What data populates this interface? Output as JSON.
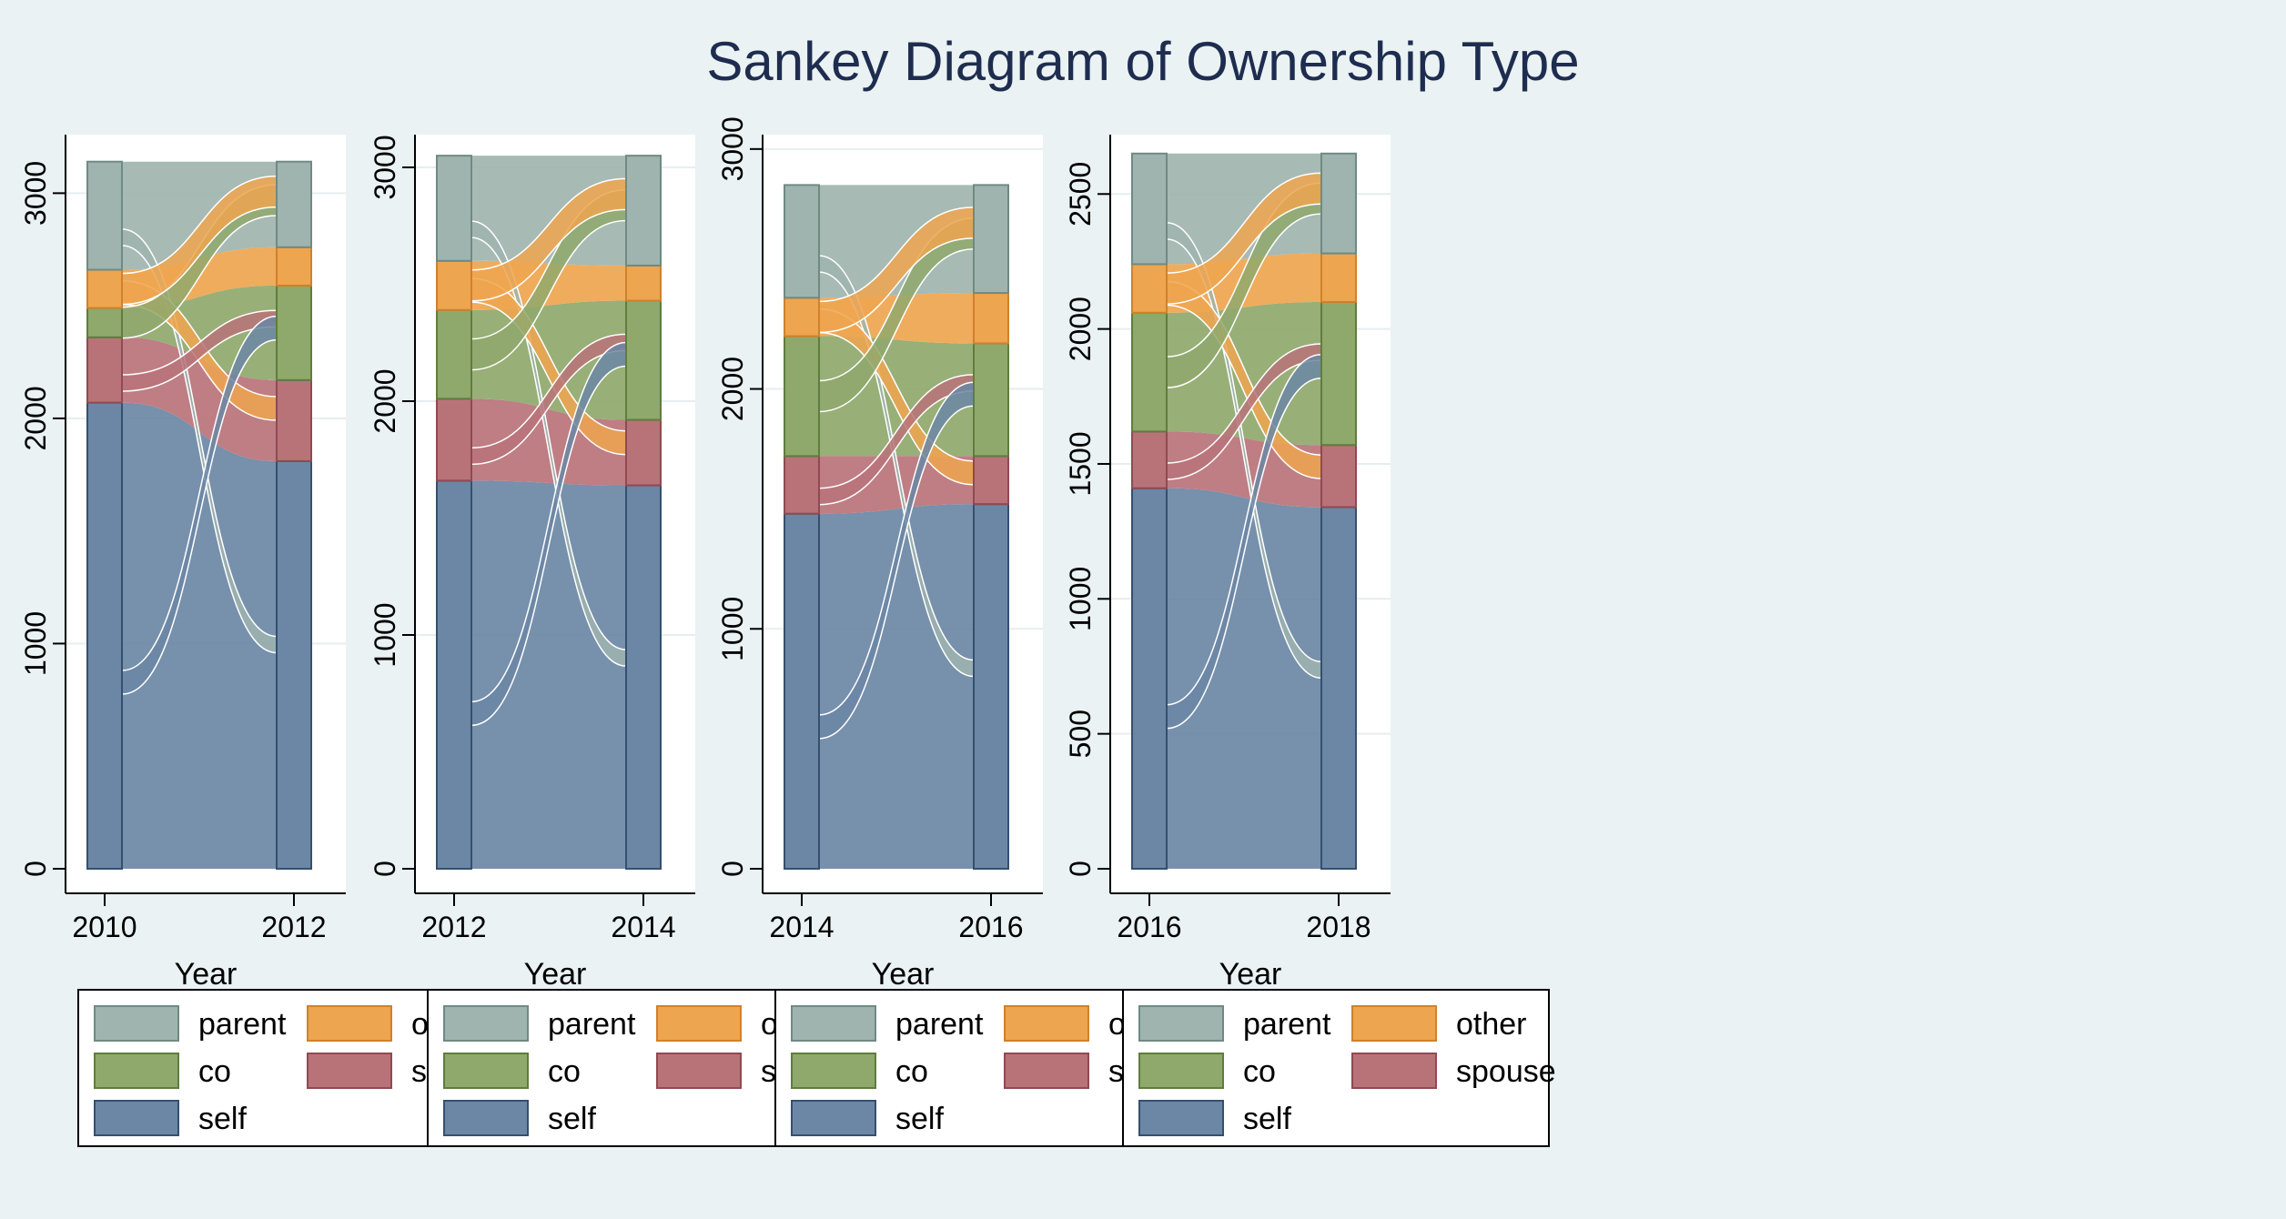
{
  "title": "Sankey Diagram of Ownership Type",
  "colors": {
    "parent": "#9fb4ae",
    "other": "#eea54f",
    "co": "#8fa86c",
    "spouse": "#b87379",
    "self": "#6b87a5"
  },
  "chart_data": [
    {
      "type": "sankey",
      "xlabel": "Year",
      "x_ticks": [
        "2010",
        "2012"
      ],
      "y_ticks": [
        0,
        1000,
        2000,
        3000
      ],
      "ylim": [
        0,
        3260
      ],
      "grid": true,
      "legend_placement": "bottom",
      "legend": [
        "parent",
        "other",
        "co",
        "spouse",
        "self"
      ],
      "left_stack": [
        {
          "category": "self",
          "value": 2070
        },
        {
          "category": "spouse",
          "value": 290
        },
        {
          "category": "co",
          "value": 130
        },
        {
          "category": "other",
          "value": 170
        },
        {
          "category": "parent",
          "value": 480
        }
      ],
      "right_stack": [
        {
          "category": "self",
          "value": 1810
        },
        {
          "category": "spouse",
          "value": 360
        },
        {
          "category": "co",
          "value": 420
        },
        {
          "category": "other",
          "value": 170
        },
        {
          "category": "parent",
          "value": 380
        }
      ]
    },
    {
      "type": "sankey",
      "xlabel": "Year",
      "x_ticks": [
        "2012",
        "2014"
      ],
      "y_ticks": [
        0,
        1000,
        2000,
        3000
      ],
      "ylim": [
        0,
        3140
      ],
      "grid": true,
      "legend_placement": "bottom",
      "legend": [
        "parent",
        "other",
        "co",
        "spouse",
        "self"
      ],
      "left_stack": [
        {
          "category": "self",
          "value": 1660
        },
        {
          "category": "spouse",
          "value": 350
        },
        {
          "category": "co",
          "value": 380
        },
        {
          "category": "other",
          "value": 210
        },
        {
          "category": "parent",
          "value": 450
        }
      ],
      "right_stack": [
        {
          "category": "self",
          "value": 1640
        },
        {
          "category": "spouse",
          "value": 280
        },
        {
          "category": "co",
          "value": 510
        },
        {
          "category": "other",
          "value": 150
        },
        {
          "category": "parent",
          "value": 470
        }
      ]
    },
    {
      "type": "sankey",
      "xlabel": "Year",
      "x_ticks": [
        "2014",
        "2016"
      ],
      "y_ticks": [
        0,
        1000,
        2000,
        3000
      ],
      "ylim": [
        0,
        3060
      ],
      "grid": true,
      "legend_placement": "bottom",
      "legend": [
        "parent",
        "other",
        "co",
        "spouse",
        "self"
      ],
      "left_stack": [
        {
          "category": "self",
          "value": 1480
        },
        {
          "category": "spouse",
          "value": 240
        },
        {
          "category": "co",
          "value": 500
        },
        {
          "category": "other",
          "value": 160
        },
        {
          "category": "parent",
          "value": 470
        }
      ],
      "right_stack": [
        {
          "category": "self",
          "value": 1520
        },
        {
          "category": "spouse",
          "value": 200
        },
        {
          "category": "co",
          "value": 470
        },
        {
          "category": "other",
          "value": 210
        },
        {
          "category": "parent",
          "value": 450
        }
      ]
    },
    {
      "type": "sankey",
      "xlabel": "Year",
      "x_ticks": [
        "2016",
        "2018"
      ],
      "y_ticks": [
        0,
        500,
        1000,
        1500,
        2000,
        2500
      ],
      "ylim": [
        0,
        2720
      ],
      "grid": true,
      "legend_placement": "bottom",
      "legend": [
        "parent",
        "other",
        "co",
        "spouse",
        "self"
      ],
      "left_stack": [
        {
          "category": "self",
          "value": 1410
        },
        {
          "category": "spouse",
          "value": 210
        },
        {
          "category": "co",
          "value": 440
        },
        {
          "category": "other",
          "value": 180
        },
        {
          "category": "parent",
          "value": 410
        }
      ],
      "right_stack": [
        {
          "category": "self",
          "value": 1340
        },
        {
          "category": "spouse",
          "value": 230
        },
        {
          "category": "co",
          "value": 530
        },
        {
          "category": "other",
          "value": 180
        },
        {
          "category": "parent",
          "value": 370
        }
      ]
    }
  ]
}
